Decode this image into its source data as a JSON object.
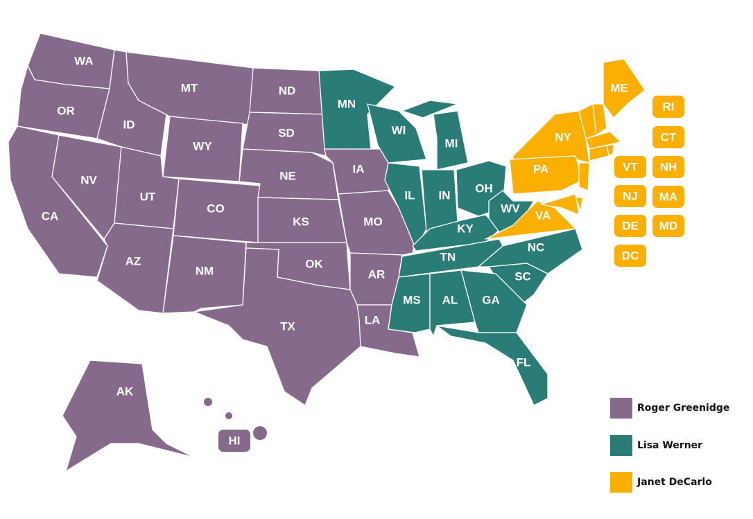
{
  "regions": [
    {
      "name": "Roger Greenidge",
      "color": "#866a8c",
      "states": [
        "WA",
        "OR",
        "CA",
        "ID",
        "NV",
        "MT",
        "WY",
        "UT",
        "AZ",
        "CO",
        "NM",
        "ND",
        "SD",
        "NE",
        "KS",
        "OK",
        "TX",
        "IA",
        "MO",
        "AR",
        "LA",
        "AK",
        "HI"
      ]
    },
    {
      "name": "Lisa Werner",
      "color": "#2a7c77",
      "states": [
        "MN",
        "WI",
        "MI",
        "IL",
        "IN",
        "OH",
        "KY",
        "WV",
        "TN",
        "NC",
        "SC",
        "MS",
        "AL",
        "GA",
        "FL"
      ]
    },
    {
      "name": "Janet DeCarlo",
      "color": "#fbaf00",
      "states": [
        "ME",
        "NY",
        "PA",
        "VA",
        "RI",
        "CT",
        "VT",
        "NH",
        "NJ",
        "MA",
        "DE",
        "MD",
        "DC"
      ]
    }
  ]
}
